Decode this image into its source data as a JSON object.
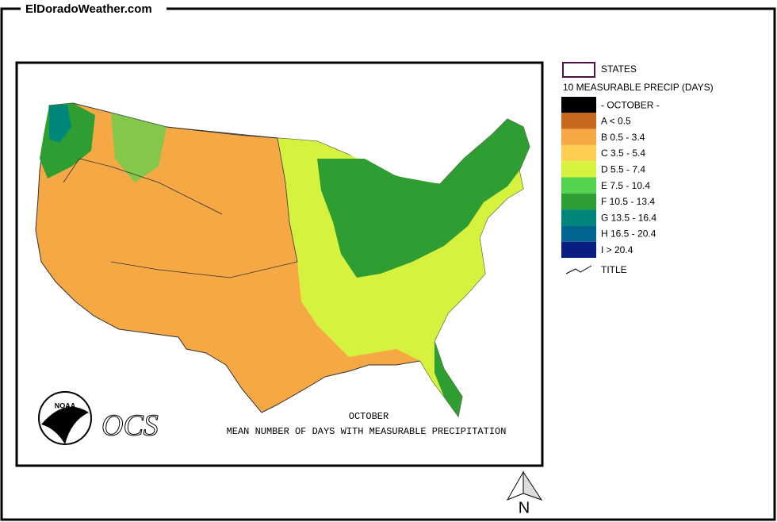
{
  "header": {
    "site": "ElDoradoWeather.com"
  },
  "map": {
    "caption_month": "OCTOBER",
    "caption": "MEAN NUMBER OF DAYS WITH MEASURABLE PRECIPITATION",
    "logo": "NOAA",
    "agency": "OCS",
    "north": "N"
  },
  "legend": {
    "states": "STATES",
    "heading": "10 MEASURABLE PRECIP (DAYS)",
    "items": [
      {
        "label": "- OCTOBER -",
        "color": "#000000"
      },
      {
        "label": "A < 0.5",
        "color": "#c86a1e"
      },
      {
        "label": "B 0.5 - 3.4",
        "color": "#f5a843"
      },
      {
        "label": "C 3.5 - 5.4",
        "color": "#fccf50"
      },
      {
        "label": "D 5.5 - 7.4",
        "color": "#d6f23e"
      },
      {
        "label": "E 7.5 - 10.4",
        "color": "#54d44e"
      },
      {
        "label": "F 10.5 - 13.4",
        "color": "#2e9e32"
      },
      {
        "label": "G 13.5 - 16.4",
        "color": "#00877a"
      },
      {
        "label": "H 16.5 - 20.4",
        "color": "#006590"
      },
      {
        "label": "I > 20.4",
        "color": "#0a1e82"
      }
    ],
    "title": "TITLE"
  }
}
